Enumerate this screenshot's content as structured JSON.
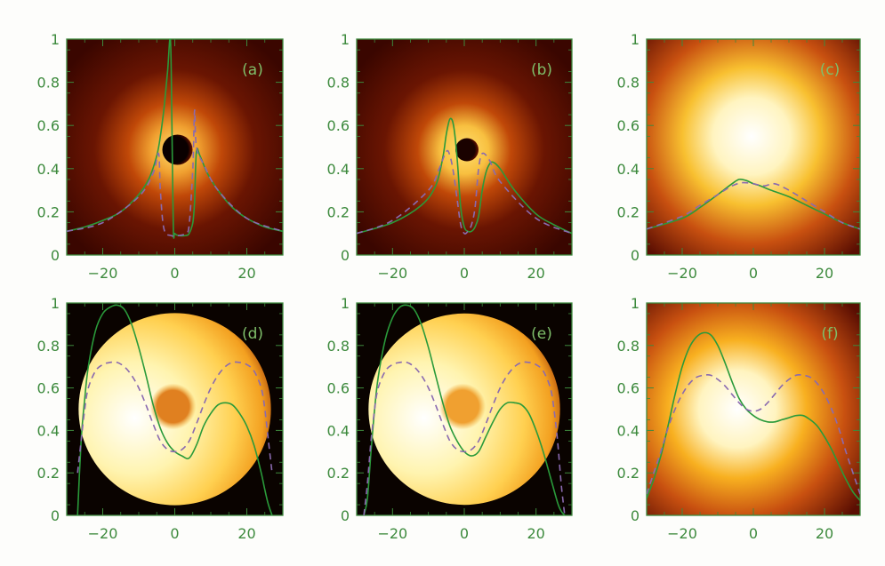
{
  "chart_data": [
    {
      "panel": "a",
      "label": "(a)",
      "type": "line",
      "x_ticks": [
        -20,
        0,
        20
      ],
      "y_ticks": [
        0,
        0.2,
        0.4,
        0.6,
        0.8,
        1
      ],
      "y_tick_labels": [
        "0",
        "0.2",
        "0.4",
        "0.6",
        "0.8",
        "1"
      ],
      "xlim": [
        -30,
        30
      ],
      "ylim": [
        0,
        1
      ],
      "background": {
        "kind": "ring",
        "core_color": "#0a0000",
        "glow_color": "#f0a030"
      },
      "series": [
        {
          "style": "solid",
          "color": "#2a9a3a",
          "x": [
            -30,
            -25,
            -20,
            -15,
            -10,
            -7,
            -5,
            -4,
            -3,
            -2,
            -1.2,
            -0.8,
            -0.4,
            0,
            1,
            3,
            4,
            5,
            5.5,
            6,
            7,
            9,
            12,
            16,
            20,
            25,
            30
          ],
          "y": [
            0.11,
            0.13,
            0.16,
            0.2,
            0.28,
            0.36,
            0.46,
            0.55,
            0.68,
            0.85,
            1.0,
            0.6,
            0.12,
            0.1,
            0.09,
            0.09,
            0.1,
            0.15,
            0.25,
            0.48,
            0.46,
            0.38,
            0.3,
            0.22,
            0.17,
            0.13,
            0.11
          ]
        },
        {
          "style": "dashed",
          "color": "#8a6ab0",
          "x": [
            -30,
            -20,
            -10,
            -6,
            -4.5,
            -4,
            -3,
            -1,
            1,
            3,
            4,
            5,
            5.5,
            6,
            8,
            12,
            20,
            30
          ],
          "y": [
            0.11,
            0.15,
            0.27,
            0.38,
            0.47,
            0.3,
            0.12,
            0.09,
            0.09,
            0.1,
            0.14,
            0.4,
            0.67,
            0.5,
            0.42,
            0.3,
            0.17,
            0.11
          ]
        }
      ]
    },
    {
      "panel": "b",
      "label": "(b)",
      "type": "line",
      "x_ticks": [
        -20,
        0,
        20
      ],
      "y_ticks": [
        0,
        0.2,
        0.4,
        0.6,
        0.8,
        1
      ],
      "y_tick_labels": [
        "0",
        "0.2",
        "0.4",
        "0.6",
        "0.8",
        "1"
      ],
      "xlim": [
        -30,
        30
      ],
      "ylim": [
        0,
        1
      ],
      "background": {
        "kind": "ring",
        "core_color": "#1a0200",
        "glow_color": "#f8c040"
      },
      "series": [
        {
          "style": "solid",
          "color": "#2a9a3a",
          "x": [
            -30,
            -20,
            -12,
            -8,
            -6,
            -5,
            -4,
            -3,
            -2,
            -1,
            0,
            1,
            2,
            3,
            4,
            5,
            6,
            7,
            8,
            10,
            14,
            20,
            25,
            30
          ],
          "y": [
            0.1,
            0.15,
            0.23,
            0.32,
            0.45,
            0.56,
            0.63,
            0.6,
            0.45,
            0.22,
            0.13,
            0.11,
            0.11,
            0.13,
            0.18,
            0.3,
            0.38,
            0.42,
            0.43,
            0.4,
            0.3,
            0.19,
            0.14,
            0.1
          ]
        },
        {
          "style": "dashed",
          "color": "#8a6ab0",
          "x": [
            -30,
            -20,
            -10,
            -7,
            -5,
            -4,
            -3,
            -2,
            -1,
            0,
            1,
            2,
            3,
            4,
            5,
            7,
            10,
            20,
            30
          ],
          "y": [
            0.1,
            0.16,
            0.3,
            0.4,
            0.48,
            0.46,
            0.38,
            0.26,
            0.14,
            0.1,
            0.11,
            0.14,
            0.22,
            0.4,
            0.47,
            0.44,
            0.34,
            0.17,
            0.1
          ]
        }
      ]
    },
    {
      "panel": "c",
      "label": "(c)",
      "type": "line",
      "x_ticks": [
        -20,
        0,
        20
      ],
      "y_ticks": [
        0,
        0.2,
        0.4,
        0.6,
        0.8,
        1
      ],
      "y_tick_labels": [
        "0",
        "0.2",
        "0.4",
        "0.6",
        "0.8",
        "1"
      ],
      "xlim": [
        -30,
        30
      ],
      "ylim": [
        0,
        1
      ],
      "background": {
        "kind": "glow",
        "center_color": "#ffffff",
        "glow_color": "#f8c030"
      },
      "series": [
        {
          "style": "solid",
          "color": "#2a9a3a",
          "x": [
            -30,
            -20,
            -15,
            -10,
            -6,
            -4,
            -2,
            0,
            2,
            5,
            10,
            15,
            20,
            25,
            30
          ],
          "y": [
            0.12,
            0.17,
            0.22,
            0.28,
            0.33,
            0.35,
            0.345,
            0.33,
            0.32,
            0.3,
            0.27,
            0.23,
            0.19,
            0.15,
            0.12
          ]
        },
        {
          "style": "dashed",
          "color": "#8a6ab0",
          "x": [
            -30,
            -20,
            -15,
            -10,
            -6,
            -3,
            0,
            3,
            6,
            10,
            15,
            20,
            25,
            30
          ],
          "y": [
            0.12,
            0.18,
            0.23,
            0.28,
            0.32,
            0.335,
            0.33,
            0.32,
            0.33,
            0.3,
            0.25,
            0.2,
            0.15,
            0.12
          ]
        }
      ]
    },
    {
      "panel": "d",
      "label": "(d)",
      "type": "line",
      "x_ticks": [
        -20,
        0,
        20
      ],
      "y_ticks": [
        0,
        0.2,
        0.4,
        0.6,
        0.8,
        1
      ],
      "y_tick_labels": [
        "0",
        "0.2",
        "0.4",
        "0.6",
        "0.8",
        "1"
      ],
      "xlim": [
        -30,
        30
      ],
      "ylim": [
        0,
        1
      ],
      "background": {
        "kind": "disk",
        "center_color": "#ffffff",
        "edge_color": "#f3a020",
        "spot_color": "#e08020",
        "outside_color": "#0a0300"
      },
      "series": [
        {
          "style": "solid",
          "color": "#2a9a3a",
          "x": [
            -27,
            -26,
            -25,
            -24,
            -22,
            -20,
            -18,
            -16,
            -14,
            -12,
            -10,
            -8,
            -6,
            -4,
            -2,
            0,
            2,
            4,
            6,
            8,
            10,
            12,
            14,
            16,
            18,
            20,
            22,
            24,
            25,
            26,
            27
          ],
          "y": [
            0,
            0.35,
            0.55,
            0.7,
            0.87,
            0.95,
            0.98,
            0.99,
            0.97,
            0.9,
            0.79,
            0.66,
            0.52,
            0.41,
            0.34,
            0.3,
            0.28,
            0.27,
            0.33,
            0.42,
            0.48,
            0.52,
            0.53,
            0.52,
            0.48,
            0.42,
            0.33,
            0.2,
            0.12,
            0.05,
            0
          ]
        },
        {
          "style": "dashed",
          "color": "#8a6ab0",
          "x": [
            -27,
            -26,
            -25,
            -24,
            -22,
            -20,
            -18,
            -16,
            -14,
            -12,
            -10,
            -8,
            -6,
            -4,
            -2,
            0,
            2,
            4,
            6,
            8,
            10,
            12,
            14,
            16,
            18,
            20,
            22,
            24,
            25,
            26,
            27
          ],
          "y": [
            0.2,
            0.35,
            0.5,
            0.6,
            0.68,
            0.71,
            0.72,
            0.72,
            0.7,
            0.66,
            0.6,
            0.52,
            0.43,
            0.35,
            0.31,
            0.3,
            0.31,
            0.35,
            0.43,
            0.52,
            0.6,
            0.66,
            0.7,
            0.72,
            0.72,
            0.71,
            0.68,
            0.6,
            0.5,
            0.35,
            0.2
          ]
        }
      ]
    },
    {
      "panel": "e",
      "label": "(e)",
      "type": "line",
      "x_ticks": [
        -20,
        0,
        20
      ],
      "y_ticks": [
        0,
        0.2,
        0.4,
        0.6,
        0.8,
        1
      ],
      "y_tick_labels": [
        "0",
        "0.2",
        "0.4",
        "0.6",
        "0.8",
        "1"
      ],
      "xlim": [
        -30,
        30
      ],
      "ylim": [
        0,
        1
      ],
      "background": {
        "kind": "disk",
        "center_color": "#ffffff",
        "edge_color": "#f3a020",
        "spot_color": "#f0a030",
        "outside_color": "#0a0300"
      },
      "series": [
        {
          "style": "solid",
          "color": "#2a9a3a",
          "x": [
            -28,
            -27,
            -26,
            -25,
            -24,
            -22,
            -20,
            -18,
            -16,
            -14,
            -12,
            -10,
            -8,
            -6,
            -4,
            -2,
            0,
            2,
            4,
            6,
            8,
            10,
            12,
            14,
            16,
            18,
            20,
            22,
            24,
            26,
            27,
            28
          ],
          "y": [
            0,
            0.08,
            0.3,
            0.5,
            0.65,
            0.83,
            0.93,
            0.98,
            0.99,
            0.97,
            0.9,
            0.79,
            0.66,
            0.53,
            0.42,
            0.35,
            0.3,
            0.28,
            0.3,
            0.37,
            0.44,
            0.5,
            0.53,
            0.53,
            0.52,
            0.48,
            0.4,
            0.3,
            0.18,
            0.06,
            0.02,
            0
          ]
        },
        {
          "style": "dashed",
          "color": "#8a6ab0",
          "x": [
            -28,
            -27,
            -26,
            -25,
            -24,
            -22,
            -20,
            -18,
            -16,
            -14,
            -12,
            -10,
            -8,
            -6,
            -4,
            -2,
            0,
            2,
            4,
            6,
            8,
            10,
            12,
            14,
            16,
            18,
            20,
            22,
            24,
            25,
            26,
            27,
            28
          ],
          "y": [
            0,
            0.15,
            0.35,
            0.5,
            0.6,
            0.68,
            0.71,
            0.72,
            0.72,
            0.7,
            0.66,
            0.6,
            0.52,
            0.43,
            0.35,
            0.31,
            0.3,
            0.31,
            0.35,
            0.43,
            0.52,
            0.6,
            0.66,
            0.7,
            0.72,
            0.72,
            0.71,
            0.68,
            0.6,
            0.5,
            0.35,
            0.15,
            0
          ]
        }
      ]
    },
    {
      "panel": "f",
      "label": "(f)",
      "type": "line",
      "x_ticks": [
        -20,
        0,
        20
      ],
      "y_ticks": [
        0,
        0.2,
        0.4,
        0.6,
        0.8,
        1
      ],
      "y_tick_labels": [
        "0",
        "0.2",
        "0.4",
        "0.6",
        "0.8",
        "1"
      ],
      "xlim": [
        -30,
        30
      ],
      "ylim": [
        0,
        1
      ],
      "background": {
        "kind": "glow",
        "center_color": "#ffffff",
        "glow_color": "#f8b020"
      },
      "series": [
        {
          "style": "solid",
          "color": "#2a9a3a",
          "x": [
            -30,
            -28,
            -26,
            -24,
            -22,
            -20,
            -18,
            -16,
            -14,
            -12,
            -10,
            -8,
            -6,
            -4,
            -2,
            0,
            2,
            4,
            6,
            8,
            10,
            12,
            14,
            16,
            18,
            20,
            22,
            24,
            26,
            28,
            30
          ],
          "y": [
            0.08,
            0.17,
            0.28,
            0.42,
            0.57,
            0.7,
            0.79,
            0.84,
            0.86,
            0.85,
            0.8,
            0.72,
            0.63,
            0.55,
            0.5,
            0.47,
            0.45,
            0.44,
            0.44,
            0.45,
            0.46,
            0.47,
            0.47,
            0.45,
            0.42,
            0.37,
            0.31,
            0.24,
            0.17,
            0.11,
            0.07
          ]
        },
        {
          "style": "dashed",
          "color": "#8a6ab0",
          "x": [
            -30,
            -28,
            -26,
            -24,
            -22,
            -20,
            -18,
            -16,
            -14,
            -12,
            -10,
            -8,
            -6,
            -4,
            -2,
            0,
            2,
            4,
            6,
            8,
            10,
            12,
            14,
            16,
            18,
            20,
            22,
            24,
            26,
            28,
            30
          ],
          "y": [
            0.1,
            0.2,
            0.3,
            0.41,
            0.5,
            0.57,
            0.62,
            0.65,
            0.66,
            0.66,
            0.64,
            0.61,
            0.57,
            0.53,
            0.5,
            0.49,
            0.5,
            0.53,
            0.57,
            0.61,
            0.64,
            0.66,
            0.66,
            0.65,
            0.62,
            0.57,
            0.5,
            0.41,
            0.3,
            0.2,
            0.1
          ]
        }
      ]
    }
  ]
}
